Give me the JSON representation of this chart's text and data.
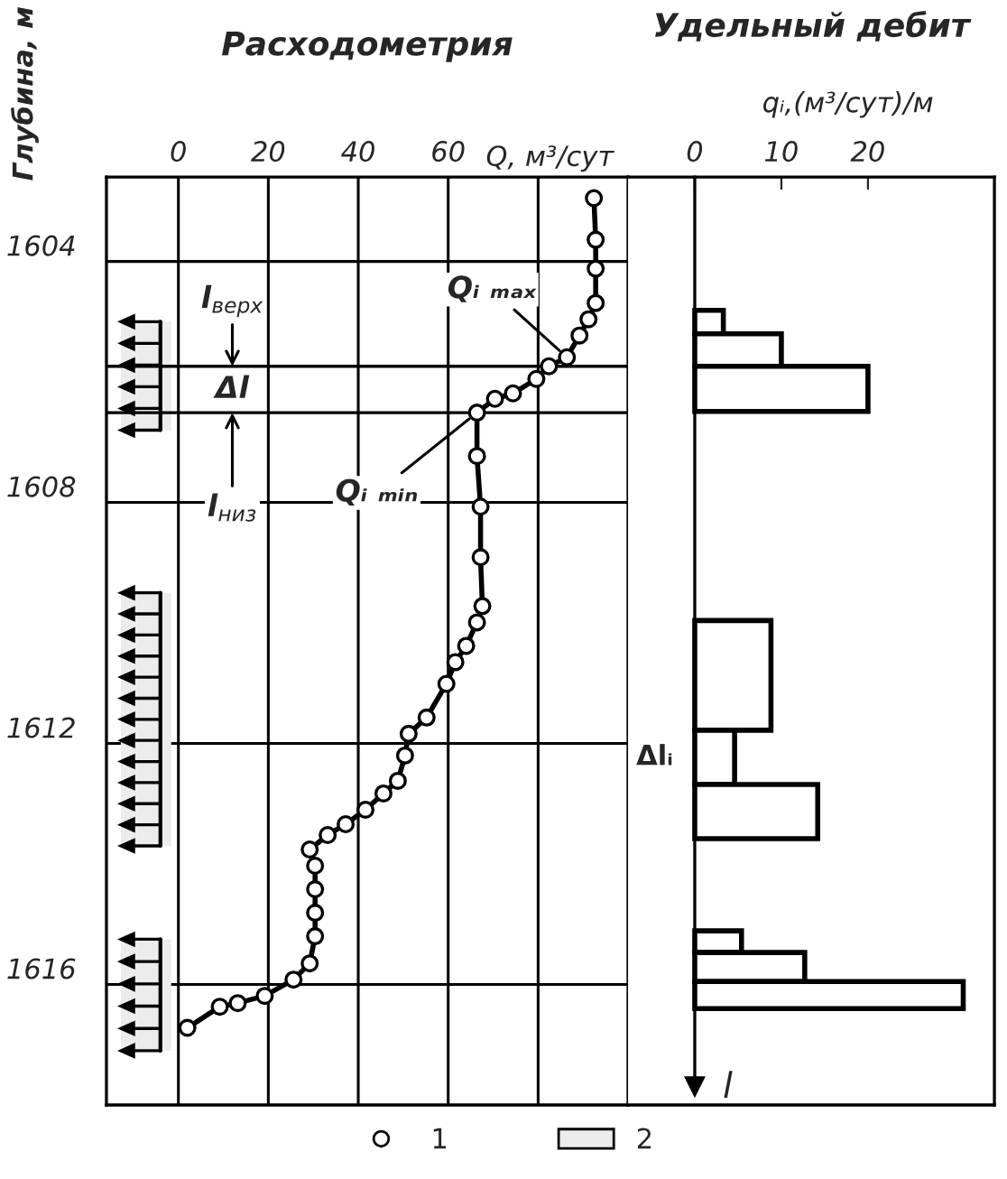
{
  "chart_data": [
    {
      "type": "line",
      "title": "Расходометрия",
      "xlabel": "Q, м³/сут",
      "ylabel": "Глубина, м",
      "xlim": [
        -16,
        100
      ],
      "xticks": [
        0,
        20,
        40,
        60,
        {
          "value": 80,
          "label": null
        }
      ],
      "ylim": [
        1618,
        1602.6
      ],
      "yticks": [
        1604,
        1608,
        1612,
        1616
      ],
      "grid": true,
      "marker": "circle",
      "legend": "bottom",
      "series": [
        {
          "name": "1",
          "color": "#000000",
          "x": [
            92.4,
            92.8,
            92.8,
            92.8,
            91.2,
            89.2,
            86.4,
            82.4,
            79.6,
            74.4,
            70.4,
            66.4,
            66.4,
            67.2,
            67.2,
            67.6,
            66.4,
            64.0,
            61.6,
            59.6,
            55.2,
            51.2,
            50.4,
            48.8,
            45.6,
            41.6,
            37.2,
            33.2,
            29.2,
            30.4,
            30.4,
            30.4,
            30.4,
            29.2,
            25.6,
            19.2,
            13.2,
            9.2,
            2.0
          ],
          "values": [
            1602.95,
            1603.64,
            1604.12,
            1604.69,
            1604.96,
            1605.23,
            1605.59,
            1605.74,
            1605.95,
            1606.19,
            1606.28,
            1606.51,
            1607.23,
            1608.07,
            1608.91,
            1609.72,
            1609.99,
            1610.38,
            1610.65,
            1611.01,
            1611.57,
            1611.84,
            1612.2,
            1612.62,
            1612.83,
            1613.1,
            1613.34,
            1613.52,
            1613.76,
            1614.03,
            1614.42,
            1614.81,
            1615.2,
            1615.65,
            1615.92,
            1616.19,
            1616.31,
            1616.37,
            1616.72
          ]
        }
      ],
      "bands": [
        {
          "axis": "y",
          "from": 1605.0,
          "to": 1606.8,
          "label": "2"
        },
        {
          "axis": "y",
          "from": 1609.5,
          "to": 1613.7
        },
        {
          "axis": "y",
          "from": 1615.25,
          "to": 1617.1
        }
      ],
      "ref_lines": [
        {
          "axis": "y",
          "value": 1605.74
        },
        {
          "axis": "y",
          "value": 1606.51
        }
      ],
      "annotations": [
        {
          "text": "Qᵢ ₘₐₓ",
          "x": 86.4,
          "y": 1605.59
        },
        {
          "text": "Qᵢ ₘᵢₙ",
          "x": 66.4,
          "y": 1606.51
        },
        {
          "text": "l$_{верх}$",
          "x": 12,
          "y": 1605.74
        },
        "Δl",
        {
          "text": "l$_{низ}$",
          "x": 12,
          "y": 1606.51
        }
      ]
    },
    {
      "type": "histogram",
      "orientation": "horizontal",
      "title": "Удельный дебит",
      "xlabel": "qᵢ,(м³/сут)/м",
      "ylabel": "l",
      "xlim": [
        -7.7,
        34.6
      ],
      "xticks": [
        0,
        10,
        20
      ],
      "ylim": [
        1618,
        1602.6
      ],
      "tick_labels": "x",
      "bins": [
        1604.81,
        1605.2,
        1605.74,
        1606.49,
        1609.96,
        1611.78,
        1612.68,
        1613.58,
        1615.11,
        1615.47,
        1615.95,
        1616.4
      ],
      "values": [
        3.3,
        10.0,
        20.0,
        null,
        8.8,
        4.6,
        14.2,
        null,
        5.4,
        12.7,
        31.0
      ],
      "annotations": [
        {
          "text": "Δlᵢ",
          "x": 0,
          "y": 1612.23
        }
      ]
    }
  ]
}
